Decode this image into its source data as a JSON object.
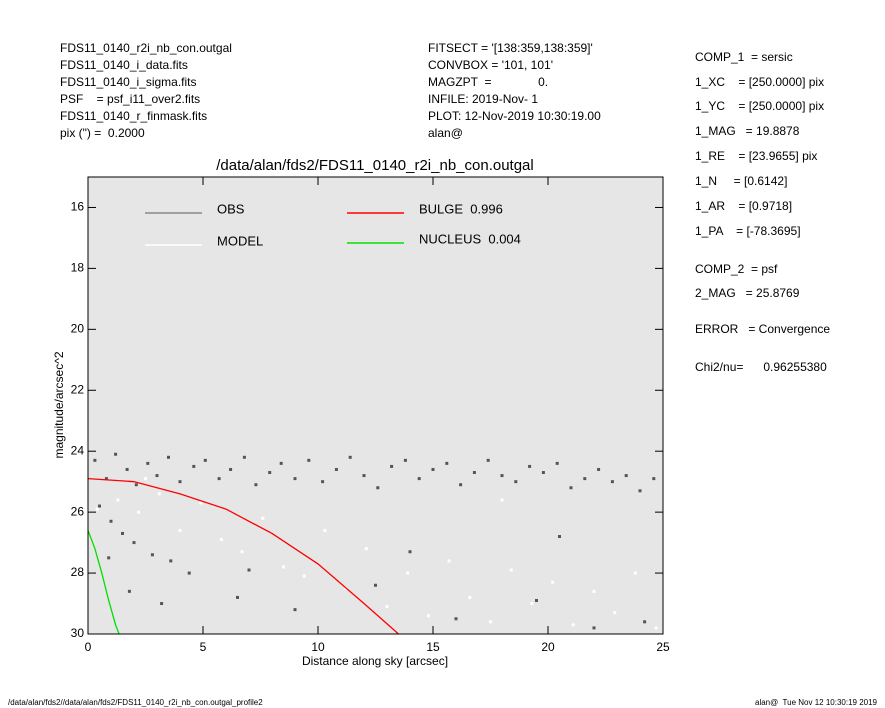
{
  "header": {
    "left": [
      "FDS11_0140_r2i_nb_con.outgal",
      "FDS11_0140_i_data.fits",
      "FDS11_0140_i_sigma.fits",
      "PSF    = psf_i11_over2.fits",
      "FDS11_0140_r_finmask.fits",
      "pix (\") =  0.2000"
    ],
    "middle": [
      "FITSECT = '[138:359,138:359]'",
      "CONVBOX = '101, 101'",
      "MAGZPT  =              0.",
      "INFILE: 2019-Nov- 1",
      "PLOT: 12-Nov-2019 10:30:19.00",
      "alan@"
    ]
  },
  "panel": [
    "COMP_1  = sersic",
    "1_XC    = [250.0000] pix",
    "1_YC    = [250.0000] pix",
    "1_MAG   = 19.8878",
    "1_RE    = [23.9655] pix",
    "1_N     = [0.6142]",
    "1_AR    = [0.9718]",
    "1_PA    = [-78.3695]",
    "COMP_2  = psf",
    "2_MAG   = 25.8769",
    "ERROR   = Convergence",
    "Chi2/nu=      0.96255380"
  ],
  "footer": {
    "left": "/data/alan/fds2//data/alan/fds2/FDS11_0140_r2i_nb_con.outgal_profile2",
    "right": "alan@  Tue Nov 12 10:30:19 2019"
  },
  "chart_data": {
    "type": "scatter",
    "title": "/data/alan/fds2/FDS11_0140_r2i_nb_con.outgal",
    "xlabel": "Distance along sky [arcsec]",
    "ylabel": "magnitude/arcsec^2",
    "xlim": [
      0,
      25
    ],
    "ylim": [
      30,
      15
    ],
    "xticks": [
      0,
      5,
      10,
      15,
      20,
      25
    ],
    "yticks": [
      16,
      18,
      20,
      22,
      24,
      26,
      28,
      30
    ],
    "background": "#e6e6e6",
    "series": [
      {
        "name": "OBS",
        "color": "#555555",
        "mode": "markers",
        "x": [
          0.3,
          0.8,
          1.2,
          1.7,
          2.1,
          2.6,
          3.0,
          3.5,
          4.0,
          4.6,
          5.1,
          5.7,
          6.2,
          6.8,
          7.3,
          7.9,
          8.4,
          9.0,
          9.6,
          10.2,
          10.8,
          11.4,
          12.0,
          12.6,
          13.2,
          13.8,
          14.4,
          15.0,
          15.6,
          16.2,
          16.8,
          17.4,
          18.0,
          18.6,
          19.2,
          19.8,
          20.4,
          21.0,
          21.6,
          22.2,
          22.8,
          23.4,
          24.0,
          24.6,
          0.5,
          1.0,
          1.5,
          2.0,
          2.8,
          3.6,
          4.4,
          0.9,
          1.8,
          6.5,
          9.0,
          12.5,
          16.0,
          19.5,
          22.0,
          3.2,
          7.0,
          14.0,
          20.5,
          24.2
        ],
        "values": [
          24.3,
          24.9,
          24.1,
          24.6,
          25.1,
          24.4,
          24.8,
          24.2,
          25.0,
          24.5,
          24.3,
          24.9,
          24.6,
          24.2,
          25.1,
          24.7,
          24.4,
          24.9,
          24.3,
          25.0,
          24.6,
          24.2,
          24.8,
          25.2,
          24.5,
          24.3,
          24.9,
          24.6,
          24.4,
          25.1,
          24.7,
          24.3,
          24.8,
          25.0,
          24.5,
          24.7,
          24.4,
          25.2,
          24.9,
          24.6,
          25.0,
          24.8,
          25.3,
          24.9,
          25.8,
          26.3,
          26.7,
          27.0,
          27.4,
          27.6,
          28.0,
          27.5,
          28.6,
          28.8,
          29.2,
          28.4,
          29.5,
          28.9,
          29.8,
          29.0,
          27.9,
          27.3,
          26.8,
          29.6
        ]
      },
      {
        "name": "MODEL",
        "color": "#ffffff",
        "mode": "markers",
        "x": [
          0.4,
          1.3,
          2.2,
          3.1,
          4.0,
          4.9,
          5.8,
          6.7,
          7.6,
          8.5,
          9.4,
          10.3,
          11.2,
          12.1,
          13.0,
          13.9,
          14.8,
          15.7,
          16.6,
          17.5,
          18.4,
          19.3,
          20.2,
          21.1,
          22.0,
          22.9,
          23.8,
          24.7,
          2.5,
          18.0
        ],
        "values": [
          25.9,
          25.6,
          26.0,
          25.4,
          26.6,
          25.7,
          26.9,
          27.3,
          26.2,
          27.8,
          28.1,
          26.6,
          28.5,
          27.2,
          29.1,
          28.0,
          29.4,
          27.6,
          28.8,
          29.6,
          27.9,
          29.0,
          28.3,
          29.7,
          28.6,
          29.3,
          28.0,
          29.8,
          24.9,
          25.6
        ]
      },
      {
        "name": "BULGE  0.996",
        "color": "#ff0000",
        "mode": "line",
        "x": [
          0,
          2,
          4,
          6,
          8,
          10,
          12,
          13.5
        ],
        "values": [
          24.9,
          25.0,
          25.4,
          25.9,
          26.7,
          27.7,
          29.0,
          30
        ]
      },
      {
        "name": "NUCLEUS  0.004",
        "color": "#00e000",
        "mode": "line",
        "x": [
          0,
          0.3,
          0.6,
          0.9,
          1.2,
          1.35
        ],
        "values": [
          26.6,
          27.2,
          28.0,
          28.9,
          29.7,
          30
        ]
      }
    ]
  }
}
